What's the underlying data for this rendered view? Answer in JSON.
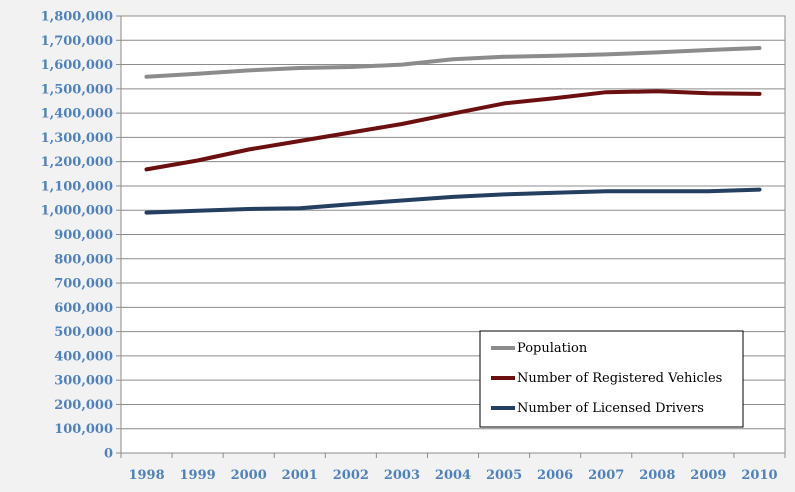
{
  "chart_data": {
    "type": "line",
    "title": "",
    "xlabel": "",
    "ylabel": "",
    "x": [
      "1998",
      "1999",
      "2000",
      "2001",
      "2002",
      "2003",
      "2004",
      "2005",
      "2006",
      "2007",
      "2008",
      "2009",
      "2010"
    ],
    "ylim": [
      0,
      1800000
    ],
    "yticks": [
      "0",
      "100,000",
      "200,000",
      "300,000",
      "400,000",
      "500,000",
      "600,000",
      "700,000",
      "800,000",
      "900,000",
      "1,000,000",
      "1,100,000",
      "1,200,000",
      "1,300,000",
      "1,400,000",
      "1,500,000",
      "1,600,000",
      "1,700,000",
      "1,800,000"
    ],
    "grid": true,
    "legend_position": "bottom-right",
    "series": [
      {
        "name": "Population",
        "color": "#8c8c8c",
        "values": [
          1550000,
          1562000,
          1576000,
          1586000,
          1590000,
          1600000,
          1622000,
          1632000,
          1636000,
          1642000,
          1650000,
          1660000,
          1668000
        ]
      },
      {
        "name": "Number of Registered Vehicles",
        "color": "#6b0f10",
        "values": [
          1168000,
          1205000,
          1250000,
          1285000,
          1320000,
          1355000,
          1398000,
          1440000,
          1462000,
          1486000,
          1490000,
          1482000,
          1479000
        ]
      },
      {
        "name": "Number of Licensed Drivers",
        "color": "#243f60",
        "values": [
          990000,
          998000,
          1005000,
          1008000,
          1025000,
          1040000,
          1055000,
          1065000,
          1072000,
          1078000,
          1078000,
          1078000,
          1085000
        ]
      }
    ]
  }
}
